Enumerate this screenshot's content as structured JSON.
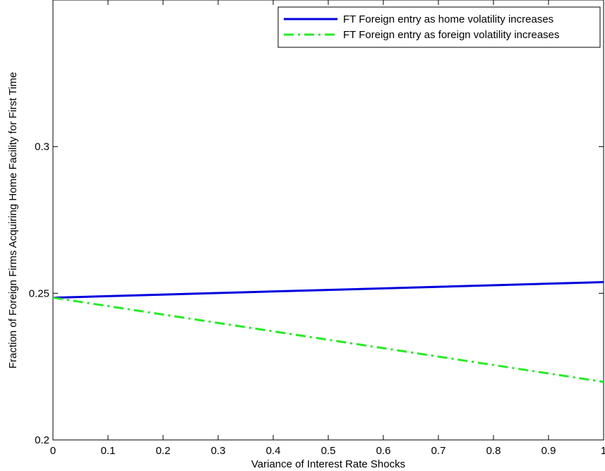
{
  "chart_data": {
    "type": "line",
    "xlabel": "Variance of Interest Rate Shocks",
    "ylabel": "Fraction of Foreign Firms Acquiring Home Facility for First Time",
    "xlim": [
      0,
      1
    ],
    "ylim": [
      0.2,
      0.35
    ],
    "xticks": [
      "0",
      "0.1",
      "0.2",
      "0.3",
      "0.4",
      "0.5",
      "0.6",
      "0.7",
      "0.8",
      "0.9",
      "1"
    ],
    "yticks": [
      "0.2",
      "0.25",
      "0.3"
    ],
    "grid": false,
    "legend_position": "top-right",
    "series": [
      {
        "name": "FT Foreign entry as home volatility increases",
        "color": "#0000dd",
        "style": "solid",
        "x": [
          0,
          1
        ],
        "y": [
          0.2485,
          0.2538
        ]
      },
      {
        "name": "FT Foreign entry as foreign volatility increases",
        "color": "#22ee22",
        "style": "dashdot",
        "x": [
          0,
          1
        ],
        "y": [
          0.2485,
          0.2198
        ]
      }
    ]
  }
}
